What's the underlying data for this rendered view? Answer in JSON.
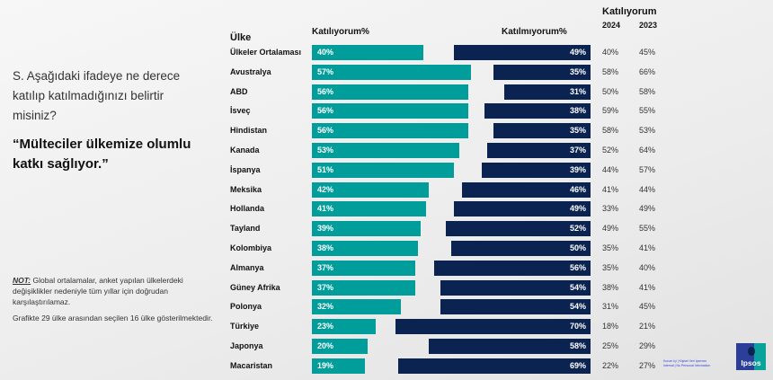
{
  "question": "S. Aşağıdaki ifadeye ne derece katılıp katılmadığınızı belirtir misiniz?",
  "statement": "“Mülteciler ülkemize olumlu katkı sağlıyor.”",
  "note_label": "NOT:",
  "note_text": " Global ortalamalar, anket yapılan ülkelerdeki değişiklikler nedeniyle tüm yıllar için doğrudan karşılaştırılamaz.",
  "note2": "Grafikte 29 ülke arasından seçilen 16 ülke gösterilmektedir.",
  "classification": "Kurum İçi | Kişisel Veri İçermez Internal | No Personal Information",
  "logo": "Ipsos",
  "colors": {
    "agree": "#009d9a",
    "disagree": "#0a2351"
  },
  "chart_data": {
    "type": "bar",
    "headers": {
      "country": "Ülke",
      "agree": "Katılıyorum%",
      "disagree": "Katılmıyorum%",
      "trend": "Katılıyorum",
      "y2024": "2024",
      "y2023": "2023"
    },
    "categories": [
      "Ülkeler Ortalaması",
      "Avustralya",
      "ABD",
      "İsveç",
      "Hindistan",
      "Kanada",
      "İspanya",
      "Meksika",
      "Hollanda",
      "Tayland",
      "Kolombiya",
      "Almanya",
      "Güney Afrika",
      "Polonya",
      "Türkiye",
      "Japonya",
      "Macaristan"
    ],
    "series": [
      {
        "name": "Katılıyorum%",
        "values": [
          40,
          57,
          56,
          56,
          56,
          53,
          51,
          42,
          41,
          39,
          38,
          37,
          37,
          32,
          23,
          20,
          19
        ]
      },
      {
        "name": "Katılmıyorum%",
        "values": [
          49,
          35,
          31,
          38,
          35,
          37,
          39,
          46,
          49,
          52,
          50,
          56,
          54,
          54,
          70,
          58,
          69
        ]
      },
      {
        "name": "Katılıyorum 2024",
        "values": [
          40,
          58,
          50,
          59,
          58,
          52,
          44,
          41,
          33,
          49,
          35,
          35,
          38,
          31,
          18,
          25,
          22
        ]
      },
      {
        "name": "Katılıyorum 2023",
        "values": [
          45,
          66,
          58,
          55,
          53,
          64,
          57,
          44,
          49,
          55,
          41,
          40,
          41,
          45,
          21,
          29,
          27
        ]
      }
    ]
  }
}
